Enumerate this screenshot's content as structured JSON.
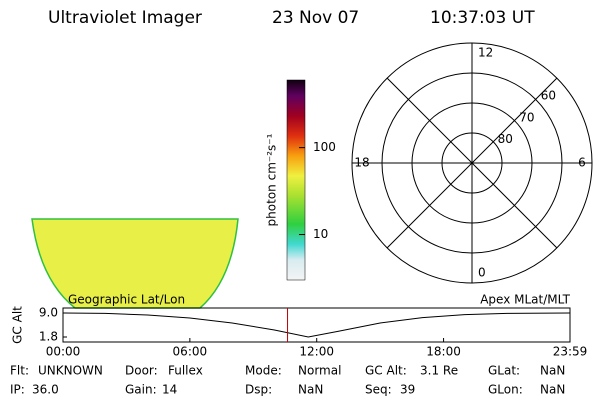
{
  "header": {
    "title": "Ultraviolet Imager",
    "date": "23 Nov 07",
    "time": "10:37:03 UT"
  },
  "colorbar": {
    "label": "photon cm⁻²s⁻¹",
    "log_scale": true,
    "lim": [
      3,
      600
    ],
    "ticks": [
      100,
      10
    ]
  },
  "polar": {
    "outer_lat": 50,
    "lat_circles": [
      80,
      70,
      60
    ],
    "mlt_labels": [
      12,
      18,
      6,
      0
    ]
  },
  "orbit_plot": {
    "ylabel": "GC Alt",
    "left_label": "Geographic Lat/Lon",
    "right_label": "Apex MLat/MLT",
    "ylim": [
      1.8,
      9.0
    ],
    "yticks": [
      {
        "value": 9.0,
        "label": "9.0"
      },
      {
        "value": 1.8,
        "label": "1.8"
      }
    ],
    "xlim": [
      0,
      23.98
    ],
    "xticks": [
      {
        "value": 0,
        "label": "00:00"
      },
      {
        "value": 6,
        "label": "06:00"
      },
      {
        "value": 12,
        "label": "12:00"
      },
      {
        "value": 18,
        "label": "18:00"
      },
      {
        "value": 23.98,
        "label": "23:59"
      }
    ],
    "x": [
      0,
      2,
      4,
      6,
      8,
      10,
      11.6,
      13,
      15,
      17,
      19,
      21,
      23.98
    ],
    "values": [
      9.0,
      8.9,
      8.4,
      7.5,
      6.0,
      3.9,
      1.8,
      3.5,
      6.0,
      7.6,
      8.5,
      8.9,
      9.0
    ],
    "cursor": 10.62,
    "color": "#000000",
    "cursor_color": "#c00000"
  },
  "footer": {
    "rows": [
      [
        {
          "label": "Flt:",
          "value": "UNKNOWN"
        },
        {
          "label": "Door:",
          "value": "Fullex"
        },
        {
          "label": "Mode:",
          "value": "Normal"
        },
        {
          "label": "GC Alt:",
          "value": "3.1 Re"
        },
        {
          "label": "GLat:",
          "value": "NaN"
        }
      ],
      [
        {
          "label": "IP:",
          "value": "36.0"
        },
        {
          "label": "Gain:",
          "value": "14"
        },
        {
          "label": "Dsp:",
          "value": "NaN"
        },
        {
          "label": "Seq:",
          "value": "39"
        },
        {
          "label": "GLon:",
          "value": "NaN"
        }
      ]
    ]
  }
}
